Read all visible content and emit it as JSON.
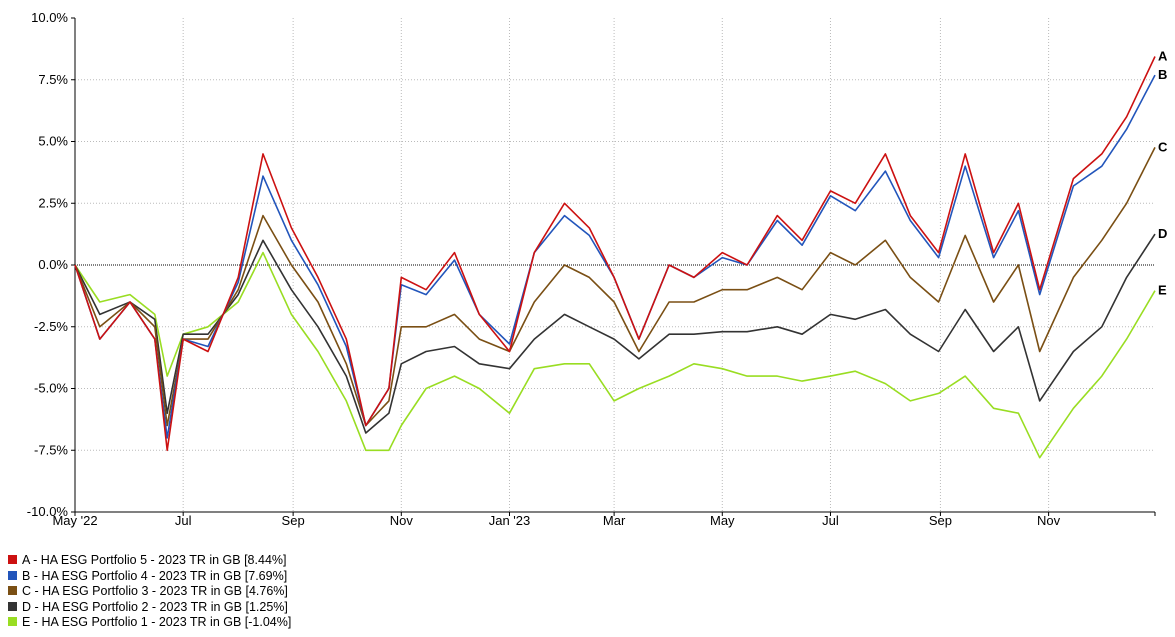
{
  "chart_data": {
    "type": "line",
    "title": "",
    "xlabel": "",
    "ylabel": "",
    "ylim": [
      -10,
      10
    ],
    "xlim": [
      "2022-05-01",
      "2023-12-31"
    ],
    "y_ticks": [
      "10.0%",
      "7.5%",
      "5.0%",
      "2.5%",
      "0.0%",
      "-2.5%",
      "-5.0%",
      "-7.5%",
      "-10.0%"
    ],
    "y_tick_values": [
      10,
      7.5,
      5,
      2.5,
      0,
      -2.5,
      -5,
      -7.5,
      -10
    ],
    "x_ticks": [
      {
        "label": "May '22",
        "date": "2022-05-01"
      },
      {
        "label": "Jul",
        "date": "2022-07-01"
      },
      {
        "label": "Sep",
        "date": "2022-09-01"
      },
      {
        "label": "Nov",
        "date": "2022-11-01"
      },
      {
        "label": "Jan '23",
        "date": "2023-01-01"
      },
      {
        "label": "Mar",
        "date": "2023-03-01"
      },
      {
        "label": "May",
        "date": "2023-05-01"
      },
      {
        "label": "Jul",
        "date": "2023-07-01"
      },
      {
        "label": "Sep",
        "date": "2023-09-01"
      },
      {
        "label": "Nov",
        "date": "2023-11-01"
      }
    ],
    "grid": true,
    "reference_line": 0,
    "series": [
      {
        "name": "A - HA ESG Portfolio 5 - 2023 TR in GB [8.44%]",
        "end_label": "A",
        "color": "#cc1111",
        "x": [
          "2022-05-01",
          "2022-05-15",
          "2022-06-01",
          "2022-06-15",
          "2022-06-22",
          "2022-07-01",
          "2022-07-15",
          "2022-08-01",
          "2022-08-15",
          "2022-08-31",
          "2022-09-15",
          "2022-10-01",
          "2022-10-12",
          "2022-10-25",
          "2022-11-01",
          "2022-11-15",
          "2022-12-01",
          "2022-12-15",
          "2023-01-01",
          "2023-01-15",
          "2023-02-01",
          "2023-02-15",
          "2023-03-01",
          "2023-03-15",
          "2023-04-01",
          "2023-04-15",
          "2023-05-01",
          "2023-05-15",
          "2023-06-01",
          "2023-06-15",
          "2023-07-01",
          "2023-07-15",
          "2023-08-01",
          "2023-08-15",
          "2023-08-31",
          "2023-09-15",
          "2023-10-01",
          "2023-10-15",
          "2023-10-27",
          "2023-11-15",
          "2023-12-01",
          "2023-12-15",
          "2023-12-31"
        ],
        "y": [
          0,
          -3,
          -1.5,
          -3,
          -7.5,
          -3,
          -3.5,
          -0.5,
          4.5,
          1.5,
          -0.5,
          -3,
          -6.5,
          -5,
          -0.5,
          -1,
          0.5,
          -2,
          -3.5,
          0.5,
          2.5,
          1.5,
          -0.5,
          -3,
          0,
          -0.5,
          0.5,
          0,
          2,
          1,
          3,
          2.5,
          4.5,
          2,
          0.5,
          4.5,
          0.5,
          2.5,
          -1,
          3.5,
          4.5,
          6,
          8.44
        ]
      },
      {
        "name": "B - HA ESG Portfolio 4 - 2023 TR in GB [7.69%]",
        "end_label": "B",
        "color": "#2255bb",
        "x": [
          "2022-05-01",
          "2022-05-15",
          "2022-06-01",
          "2022-06-15",
          "2022-06-22",
          "2022-07-01",
          "2022-07-15",
          "2022-08-01",
          "2022-08-15",
          "2022-08-31",
          "2022-09-15",
          "2022-10-01",
          "2022-10-12",
          "2022-10-25",
          "2022-11-01",
          "2022-11-15",
          "2022-12-01",
          "2022-12-15",
          "2023-01-01",
          "2023-01-15",
          "2023-02-01",
          "2023-02-15",
          "2023-03-01",
          "2023-03-15",
          "2023-04-01",
          "2023-04-15",
          "2023-05-01",
          "2023-05-15",
          "2023-06-01",
          "2023-06-15",
          "2023-07-01",
          "2023-07-15",
          "2023-08-01",
          "2023-08-15",
          "2023-08-31",
          "2023-09-15",
          "2023-10-01",
          "2023-10-15",
          "2023-10-27",
          "2023-11-15",
          "2023-12-01",
          "2023-12-15",
          "2023-12-31"
        ],
        "y": [
          0,
          -3,
          -1.5,
          -3,
          -7,
          -3,
          -3.3,
          -0.7,
          3.6,
          1,
          -0.8,
          -3.3,
          -6.5,
          -5,
          -0.8,
          -1.2,
          0.2,
          -2,
          -3.2,
          0.5,
          2,
          1.2,
          -0.5,
          -3,
          0,
          -0.5,
          0.3,
          0,
          1.8,
          0.8,
          2.8,
          2.2,
          3.8,
          1.8,
          0.3,
          4,
          0.3,
          2.2,
          -1.2,
          3.2,
          4,
          5.5,
          7.69
        ]
      },
      {
        "name": "C - HA ESG Portfolio 3 - 2023 TR in GB [4.76%]",
        "end_label": "C",
        "color": "#7a4f14",
        "x": [
          "2022-05-01",
          "2022-05-15",
          "2022-06-01",
          "2022-06-15",
          "2022-06-22",
          "2022-07-01",
          "2022-07-15",
          "2022-08-01",
          "2022-08-15",
          "2022-08-31",
          "2022-09-15",
          "2022-10-01",
          "2022-10-12",
          "2022-10-25",
          "2022-11-01",
          "2022-11-15",
          "2022-12-01",
          "2022-12-15",
          "2023-01-01",
          "2023-01-15",
          "2023-02-01",
          "2023-02-15",
          "2023-03-01",
          "2023-03-15",
          "2023-04-01",
          "2023-04-15",
          "2023-05-01",
          "2023-05-15",
          "2023-06-01",
          "2023-06-15",
          "2023-07-01",
          "2023-07-15",
          "2023-08-01",
          "2023-08-15",
          "2023-08-31",
          "2023-09-15",
          "2023-10-01",
          "2023-10-15",
          "2023-10-27",
          "2023-11-15",
          "2023-12-01",
          "2023-12-15",
          "2023-12-31"
        ],
        "y": [
          0,
          -2.5,
          -1.5,
          -2.5,
          -6.5,
          -3,
          -3,
          -1,
          2,
          0,
          -1.5,
          -4,
          -6.5,
          -5.5,
          -2.5,
          -2.5,
          -2,
          -3,
          -3.5,
          -1.5,
          0,
          -0.5,
          -1.5,
          -3.5,
          -1.5,
          -1.5,
          -1,
          -1,
          -0.5,
          -1,
          0.5,
          0,
          1,
          -0.5,
          -1.5,
          1.2,
          -1.5,
          0,
          -3.5,
          -0.5,
          1,
          2.5,
          4.76
        ]
      },
      {
        "name": "D - HA ESG Portfolio 2 - 2023 TR in GB [1.25%]",
        "end_label": "D",
        "color": "#333333",
        "x": [
          "2022-05-01",
          "2022-05-15",
          "2022-06-01",
          "2022-06-15",
          "2022-06-22",
          "2022-07-01",
          "2022-07-15",
          "2022-08-01",
          "2022-08-15",
          "2022-08-31",
          "2022-09-15",
          "2022-10-01",
          "2022-10-12",
          "2022-10-25",
          "2022-11-01",
          "2022-11-15",
          "2022-12-01",
          "2022-12-15",
          "2023-01-01",
          "2023-01-15",
          "2023-02-01",
          "2023-02-15",
          "2023-03-01",
          "2023-03-15",
          "2023-04-01",
          "2023-04-15",
          "2023-05-01",
          "2023-05-15",
          "2023-06-01",
          "2023-06-15",
          "2023-07-01",
          "2023-07-15",
          "2023-08-01",
          "2023-08-15",
          "2023-08-31",
          "2023-09-15",
          "2023-10-01",
          "2023-10-15",
          "2023-10-27",
          "2023-11-15",
          "2023-12-01",
          "2023-12-15",
          "2023-12-31"
        ],
        "y": [
          0,
          -2,
          -1.5,
          -2.2,
          -6,
          -2.8,
          -2.8,
          -1.2,
          1,
          -1,
          -2.5,
          -4.5,
          -6.8,
          -6,
          -4,
          -3.5,
          -3.3,
          -4,
          -4.2,
          -3,
          -2,
          -2.5,
          -3,
          -3.8,
          -2.8,
          -2.8,
          -2.7,
          -2.7,
          -2.5,
          -2.8,
          -2,
          -2.2,
          -1.8,
          -2.8,
          -3.5,
          -1.8,
          -3.5,
          -2.5,
          -5.5,
          -3.5,
          -2.5,
          -0.5,
          1.25
        ]
      },
      {
        "name": "E - HA ESG Portfolio 1 - 2023 TR in GB [-1.04%]",
        "end_label": "E",
        "color": "#99dd22",
        "x": [
          "2022-05-01",
          "2022-05-15",
          "2022-06-01",
          "2022-06-15",
          "2022-06-22",
          "2022-07-01",
          "2022-07-15",
          "2022-08-01",
          "2022-08-15",
          "2022-08-31",
          "2022-09-15",
          "2022-10-01",
          "2022-10-12",
          "2022-10-25",
          "2022-11-01",
          "2022-11-15",
          "2022-12-01",
          "2022-12-15",
          "2023-01-01",
          "2023-01-15",
          "2023-02-01",
          "2023-02-15",
          "2023-03-01",
          "2023-03-15",
          "2023-04-01",
          "2023-04-15",
          "2023-05-01",
          "2023-05-15",
          "2023-06-01",
          "2023-06-15",
          "2023-07-01",
          "2023-07-15",
          "2023-08-01",
          "2023-08-15",
          "2023-08-31",
          "2023-09-15",
          "2023-10-01",
          "2023-10-15",
          "2023-10-27",
          "2023-11-15",
          "2023-12-01",
          "2023-12-15",
          "2023-12-31"
        ],
        "y": [
          0,
          -1.5,
          -1.2,
          -2,
          -4.5,
          -2.8,
          -2.5,
          -1.5,
          0.5,
          -2,
          -3.5,
          -5.5,
          -7.5,
          -7.5,
          -6.5,
          -5,
          -4.5,
          -5,
          -6,
          -4.2,
          -4,
          -4,
          -5.5,
          -5,
          -4.5,
          -4,
          -4.2,
          -4.5,
          -4.5,
          -4.7,
          -4.5,
          -4.3,
          -4.8,
          -5.5,
          -5.2,
          -4.5,
          -5.8,
          -6,
          -7.8,
          -5.8,
          -4.5,
          -3,
          -1.04
        ]
      }
    ]
  }
}
